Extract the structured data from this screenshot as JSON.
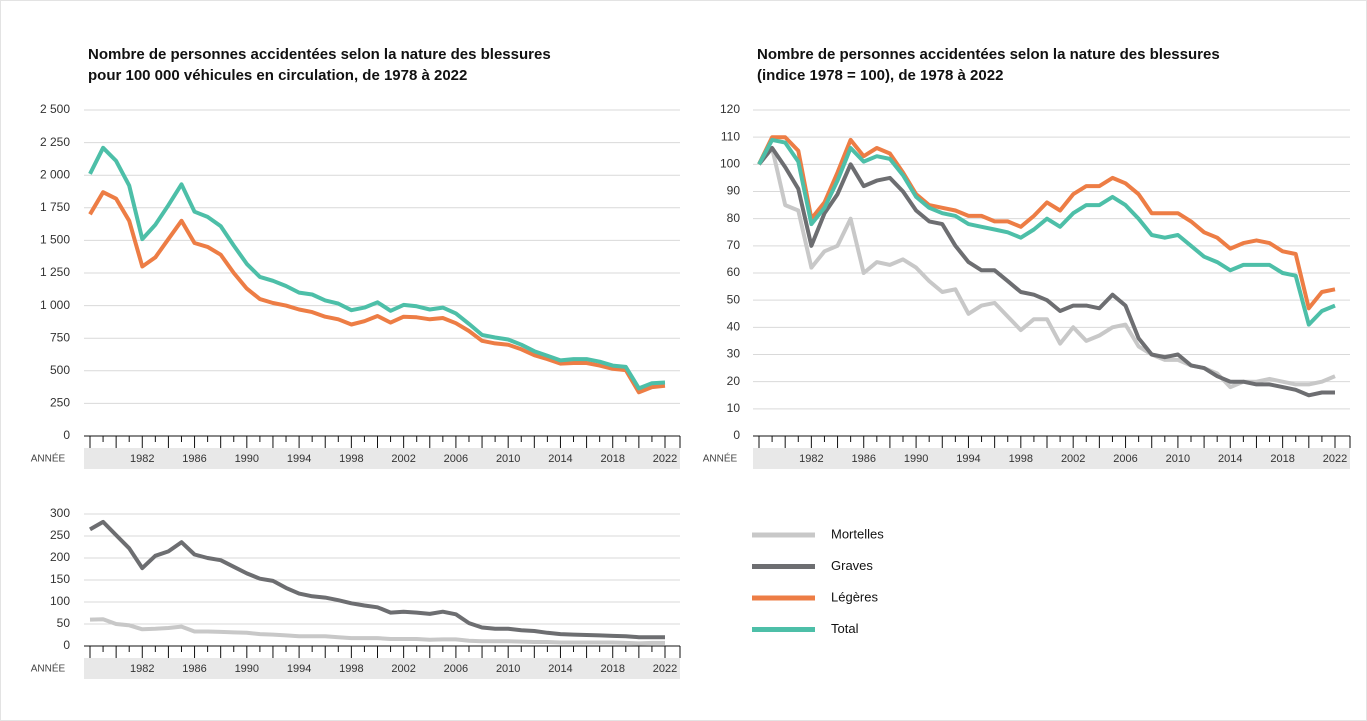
{
  "chart_data": [
    {
      "type": "line",
      "title": [
        "Nombre de personnes accidentées selon la nature des blessures",
        "pour 100 000 véhicules en circulation, de 1978 à 2022"
      ],
      "xlabel": "ANNÉE",
      "x": [
        1978,
        1979,
        1980,
        1981,
        1982,
        1983,
        1984,
        1985,
        1986,
        1987,
        1988,
        1989,
        1990,
        1991,
        1992,
        1993,
        1994,
        1995,
        1996,
        1997,
        1998,
        1999,
        2000,
        2001,
        2002,
        2003,
        2004,
        2005,
        2006,
        2007,
        2008,
        2009,
        2010,
        2011,
        2012,
        2013,
        2014,
        2015,
        2016,
        2017,
        2018,
        2019,
        2020,
        2021,
        2022
      ],
      "xlim": [
        1978,
        2022
      ],
      "xticks": [
        1982,
        1986,
        1990,
        1994,
        1998,
        2002,
        2006,
        2010,
        2014,
        2018,
        2022
      ],
      "ylim": [
        0,
        2500
      ],
      "yticks": [
        0,
        250,
        500,
        750,
        {
          "value": 1000,
          "label": "1 000"
        },
        {
          "value": 1250,
          "label": "1 250"
        },
        {
          "value": 1500,
          "label": "1 500"
        },
        {
          "value": 1750,
          "label": "1 750"
        },
        {
          "value": 2000,
          "label": "2 000"
        },
        {
          "value": 2250,
          "label": "2 250"
        },
        {
          "value": 2500,
          "label": "2 500"
        }
      ],
      "grid": true,
      "series": [
        {
          "name": "Légères",
          "color": "#ed7d45",
          "values": [
            1700,
            1870,
            1820,
            1650,
            1300,
            1370,
            1510,
            1650,
            1480,
            1450,
            1390,
            1250,
            1130,
            1050,
            1020,
            1000,
            970,
            950,
            915,
            895,
            855,
            880,
            920,
            870,
            915,
            910,
            895,
            905,
            865,
            805,
            730,
            710,
            700,
            665,
            620,
            590,
            555,
            560,
            560,
            540,
            515,
            505,
            335,
            375,
            385
          ]
        },
        {
          "name": "Total",
          "color": "#4dbfa8",
          "values": [
            2010,
            2210,
            2110,
            1920,
            1510,
            1620,
            1770,
            1930,
            1720,
            1680,
            1610,
            1460,
            1320,
            1220,
            1190,
            1150,
            1100,
            1085,
            1040,
            1015,
            965,
            985,
            1025,
            960,
            1005,
            995,
            970,
            985,
            940,
            860,
            775,
            755,
            740,
            700,
            650,
            615,
            580,
            590,
            590,
            570,
            540,
            530,
            365,
            405,
            410
          ]
        }
      ]
    },
    {
      "type": "line",
      "title": [
        "Nombre de personnes accidentées selon la nature des blessures",
        "(indice 1978 = 100), de 1978 à 2022"
      ],
      "xlabel": "ANNÉE",
      "x": [
        1978,
        1979,
        1980,
        1981,
        1982,
        1983,
        1984,
        1985,
        1986,
        1987,
        1988,
        1989,
        1990,
        1991,
        1992,
        1993,
        1994,
        1995,
        1996,
        1997,
        1998,
        1999,
        2000,
        2001,
        2002,
        2003,
        2004,
        2005,
        2006,
        2007,
        2008,
        2009,
        2010,
        2011,
        2012,
        2013,
        2014,
        2015,
        2016,
        2017,
        2018,
        2019,
        2020,
        2021,
        2022
      ],
      "xlim": [
        1978,
        2022
      ],
      "xticks": [
        1982,
        1986,
        1990,
        1994,
        1998,
        2002,
        2006,
        2010,
        2014,
        2018,
        2022
      ],
      "ylim": [
        0,
        120
      ],
      "yticks": [
        0,
        10,
        20,
        30,
        40,
        50,
        60,
        70,
        80,
        90,
        100,
        110,
        120
      ],
      "grid": true,
      "series": [
        {
          "name": "Mortelles",
          "color": "#c8c8c8",
          "values": [
            100,
            106,
            85,
            83,
            62,
            68,
            70,
            80,
            60,
            64,
            63,
            65,
            62,
            57,
            53,
            54,
            45,
            48,
            49,
            44,
            39,
            43,
            43,
            34,
            40,
            35,
            37,
            40,
            41,
            33,
            30,
            28,
            28,
            26,
            25,
            23,
            18,
            20,
            20,
            21,
            20,
            19,
            19,
            20,
            22
          ]
        },
        {
          "name": "Graves",
          "color": "#6d6e71",
          "values": [
            100,
            106,
            99,
            91,
            70,
            82,
            89,
            100,
            92,
            94,
            95,
            90,
            83,
            79,
            78,
            70,
            64,
            61,
            61,
            57,
            53,
            52,
            50,
            46,
            48,
            48,
            47,
            52,
            48,
            36,
            30,
            29,
            30,
            26,
            25,
            22,
            20,
            20,
            19,
            19,
            18,
            17,
            15,
            16,
            16
          ]
        },
        {
          "name": "Légères",
          "color": "#ed7d45",
          "values": [
            100,
            110,
            110,
            105,
            80,
            86,
            97,
            109,
            103,
            106,
            104,
            97,
            89,
            85,
            84,
            83,
            81,
            81,
            79,
            79,
            77,
            81,
            86,
            83,
            89,
            92,
            92,
            95,
            93,
            89,
            82,
            82,
            82,
            79,
            75,
            73,
            69,
            71,
            72,
            71,
            68,
            67,
            47,
            53,
            54
          ]
        },
        {
          "name": "Total",
          "color": "#4dbfa8",
          "values": [
            100,
            109,
            108,
            101,
            78,
            84,
            94,
            106,
            101,
            103,
            102,
            96,
            88,
            84,
            82,
            81,
            78,
            77,
            76,
            75,
            73,
            76,
            80,
            77,
            82,
            85,
            85,
            88,
            85,
            80,
            74,
            73,
            74,
            70,
            66,
            64,
            61,
            63,
            63,
            63,
            60,
            59,
            41,
            46,
            48
          ]
        }
      ]
    },
    {
      "type": "line",
      "xlabel": "ANNÉE",
      "x": [
        1978,
        1979,
        1980,
        1981,
        1982,
        1983,
        1984,
        1985,
        1986,
        1987,
        1988,
        1989,
        1990,
        1991,
        1992,
        1993,
        1994,
        1995,
        1996,
        1997,
        1998,
        1999,
        2000,
        2001,
        2002,
        2003,
        2004,
        2005,
        2006,
        2007,
        2008,
        2009,
        2010,
        2011,
        2012,
        2013,
        2014,
        2015,
        2016,
        2017,
        2018,
        2019,
        2020,
        2021,
        2022
      ],
      "xlim": [
        1978,
        2022
      ],
      "xticks": [
        1982,
        1986,
        1990,
        1994,
        1998,
        2002,
        2006,
        2010,
        2014,
        2018,
        2022
      ],
      "ylim": [
        0,
        300
      ],
      "yticks": [
        0,
        50,
        100,
        150,
        200,
        250,
        300
      ],
      "grid": true,
      "series": [
        {
          "name": "Mortelles",
          "color": "#c8c8c8",
          "values": [
            60,
            61,
            50,
            47,
            38,
            39,
            41,
            44,
            33,
            33,
            32,
            31,
            30,
            27,
            26,
            24,
            22,
            22,
            22,
            20,
            18,
            18,
            18,
            16,
            16,
            16,
            14,
            15,
            15,
            12,
            11,
            11,
            11,
            10,
            9,
            9,
            8,
            8,
            8,
            8,
            8,
            7,
            6,
            7,
            7
          ]
        },
        {
          "name": "Graves",
          "color": "#6d6e71",
          "values": [
            265,
            282,
            252,
            222,
            177,
            205,
            215,
            236,
            208,
            200,
            195,
            180,
            165,
            153,
            148,
            132,
            119,
            113,
            110,
            104,
            97,
            92,
            88,
            76,
            78,
            76,
            73,
            78,
            72,
            52,
            42,
            39,
            39,
            36,
            34,
            30,
            27,
            26,
            25,
            24,
            23,
            22,
            20,
            20,
            20
          ]
        }
      ]
    }
  ]
}
